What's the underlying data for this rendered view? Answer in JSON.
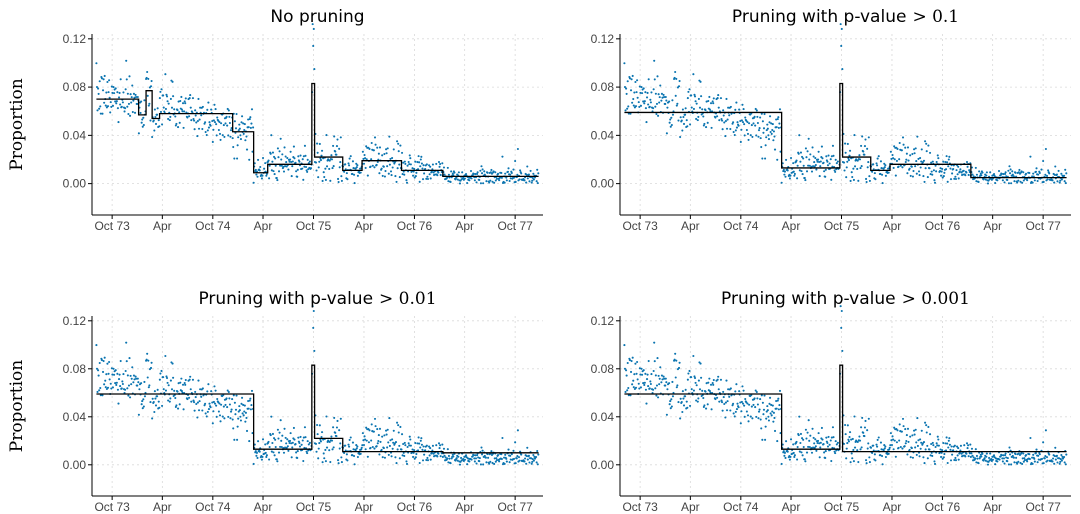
{
  "chart_data": [
    {
      "type": "scatter",
      "title": "No pruning",
      "ylabel": "Proportion",
      "xlabel": "",
      "x_tick_labels": [
        "Oct 73",
        "Apr",
        "Oct 74",
        "Apr",
        "Oct 75",
        "Apr",
        "Oct 76",
        "Apr",
        "Oct 77"
      ],
      "x_tick_dates": [
        "1973-10-01",
        "1974-04-01",
        "1974-10-01",
        "1975-04-01",
        "1975-10-01",
        "1976-04-01",
        "1976-10-01",
        "1977-04-01",
        "1977-10-01"
      ],
      "xlim": [
        "1973-07-20",
        "1978-01-10"
      ],
      "y_ticks": [
        "0.00",
        "0.04",
        "0.08",
        "0.12"
      ],
      "ylim": [
        -0.026,
        0.124
      ],
      "grid": true,
      "point_color": "#0a74b0",
      "fit_color": "#000000",
      "segments": [
        {
          "start": "1973-08-05",
          "end": "1974-01-05",
          "value": 0.07
        },
        {
          "start": "1974-01-05",
          "end": "1974-02-01",
          "value": 0.057
        },
        {
          "start": "1974-02-01",
          "end": "1974-02-23",
          "value": 0.077
        },
        {
          "start": "1974-02-23",
          "end": "1974-03-22",
          "value": 0.054
        },
        {
          "start": "1974-03-22",
          "end": "1974-12-12",
          "value": 0.058
        },
        {
          "start": "1974-12-12",
          "end": "1975-02-26",
          "value": 0.043
        },
        {
          "start": "1975-02-26",
          "end": "1975-04-18",
          "value": 0.009
        },
        {
          "start": "1975-04-18",
          "end": "1975-09-25",
          "value": 0.016
        },
        {
          "start": "1975-09-25",
          "end": "1975-10-05",
          "value": 0.083
        },
        {
          "start": "1975-10-05",
          "end": "1976-01-15",
          "value": 0.022
        },
        {
          "start": "1976-01-15",
          "end": "1976-03-25",
          "value": 0.011
        },
        {
          "start": "1976-03-25",
          "end": "1976-08-15",
          "value": 0.019
        },
        {
          "start": "1976-08-15",
          "end": "1977-01-12",
          "value": 0.011
        },
        {
          "start": "1977-01-12",
          "end": "1977-12-25",
          "value": 0.006
        }
      ]
    },
    {
      "type": "scatter",
      "title": "Pruning with p-value",
      "title_math": "> 0.1",
      "ylabel": "",
      "xlabel": "",
      "x_tick_labels": [
        "Oct 73",
        "Apr",
        "Oct 74",
        "Apr",
        "Oct 75",
        "Apr",
        "Oct 76",
        "Apr",
        "Oct 77"
      ],
      "x_tick_dates": [
        "1973-10-01",
        "1974-04-01",
        "1974-10-01",
        "1975-04-01",
        "1975-10-01",
        "1976-04-01",
        "1976-10-01",
        "1977-04-01",
        "1977-10-01"
      ],
      "xlim": [
        "1973-07-20",
        "1978-01-10"
      ],
      "y_ticks": [
        "0.00",
        "0.04",
        "0.08",
        "0.12"
      ],
      "ylim": [
        -0.026,
        0.124
      ],
      "grid": true,
      "point_color": "#0a74b0",
      "fit_color": "#000000",
      "segments": [
        {
          "start": "1973-08-05",
          "end": "1975-02-26",
          "value": 0.059
        },
        {
          "start": "1975-02-26",
          "end": "1975-09-25",
          "value": 0.013
        },
        {
          "start": "1975-09-25",
          "end": "1975-10-05",
          "value": 0.083
        },
        {
          "start": "1975-10-05",
          "end": "1976-01-15",
          "value": 0.022
        },
        {
          "start": "1976-01-15",
          "end": "1976-03-25",
          "value": 0.011
        },
        {
          "start": "1976-03-25",
          "end": "1977-01-12",
          "value": 0.016
        },
        {
          "start": "1977-01-12",
          "end": "1977-12-25",
          "value": 0.005
        }
      ]
    },
    {
      "type": "scatter",
      "title": "Pruning with p-value",
      "title_math": "> 0.01",
      "ylabel": "Proportion",
      "xlabel": "",
      "x_tick_labels": [
        "Oct 73",
        "Apr",
        "Oct 74",
        "Apr",
        "Oct 75",
        "Apr",
        "Oct 76",
        "Apr",
        "Oct 77"
      ],
      "x_tick_dates": [
        "1973-10-01",
        "1974-04-01",
        "1974-10-01",
        "1975-04-01",
        "1975-10-01",
        "1976-04-01",
        "1976-10-01",
        "1977-04-01",
        "1977-10-01"
      ],
      "xlim": [
        "1973-07-20",
        "1978-01-10"
      ],
      "y_ticks": [
        "0.00",
        "0.04",
        "0.08",
        "0.12"
      ],
      "ylim": [
        -0.026,
        0.124
      ],
      "grid": true,
      "point_color": "#0a74b0",
      "fit_color": "#000000",
      "segments": [
        {
          "start": "1973-08-05",
          "end": "1975-02-26",
          "value": 0.059
        },
        {
          "start": "1975-02-26",
          "end": "1975-09-25",
          "value": 0.013
        },
        {
          "start": "1975-09-25",
          "end": "1975-10-05",
          "value": 0.083
        },
        {
          "start": "1975-10-05",
          "end": "1976-01-15",
          "value": 0.022
        },
        {
          "start": "1976-01-15",
          "end": "1977-01-12",
          "value": 0.011
        },
        {
          "start": "1977-01-12",
          "end": "1977-12-25",
          "value": 0.01
        }
      ]
    },
    {
      "type": "scatter",
      "title": "Pruning with p-value",
      "title_math": "> 0.001",
      "ylabel": "",
      "xlabel": "",
      "x_tick_labels": [
        "Oct 73",
        "Apr",
        "Oct 74",
        "Apr",
        "Oct 75",
        "Apr",
        "Oct 76",
        "Apr",
        "Oct 77"
      ],
      "x_tick_dates": [
        "1973-10-01",
        "1974-04-01",
        "1974-10-01",
        "1975-04-01",
        "1975-10-01",
        "1976-04-01",
        "1976-10-01",
        "1977-04-01",
        "1977-10-01"
      ],
      "xlim": [
        "1973-07-20",
        "1978-01-10"
      ],
      "y_ticks": [
        "0.00",
        "0.04",
        "0.08",
        "0.12"
      ],
      "ylim": [
        -0.026,
        0.124
      ],
      "grid": true,
      "point_color": "#0a74b0",
      "fit_color": "#000000",
      "segments": [
        {
          "start": "1973-08-05",
          "end": "1975-02-26",
          "value": 0.059
        },
        {
          "start": "1975-02-26",
          "end": "1975-09-25",
          "value": 0.013
        },
        {
          "start": "1975-09-25",
          "end": "1975-10-05",
          "value": 0.083
        },
        {
          "start": "1975-10-05",
          "end": "1977-12-25",
          "value": 0.011
        }
      ]
    }
  ],
  "scatter_data": {
    "start_date": "1973-08-05",
    "end_date": "1977-12-25",
    "sample_every_days": 2,
    "levels": [
      {
        "start": "1973-08-05",
        "end": "1974-01-05",
        "mean": 0.072,
        "spread": 0.01
      },
      {
        "start": "1974-01-05",
        "end": "1974-02-01",
        "mean": 0.058,
        "spread": 0.012
      },
      {
        "start": "1974-02-01",
        "end": "1974-02-23",
        "mean": 0.076,
        "spread": 0.013
      },
      {
        "start": "1974-02-23",
        "end": "1974-03-22",
        "mean": 0.056,
        "spread": 0.008
      },
      {
        "start": "1974-03-22",
        "end": "1974-12-12",
        "mean": 0.058,
        "spread": 0.009
      },
      {
        "start": "1974-12-12",
        "end": "1975-02-26",
        "mean": 0.043,
        "spread": 0.009
      },
      {
        "start": "1975-02-26",
        "end": "1975-04-18",
        "mean": 0.01,
        "spread": 0.004
      },
      {
        "start": "1975-04-18",
        "end": "1975-09-25",
        "mean": 0.016,
        "spread": 0.006
      },
      {
        "start": "1975-09-25",
        "end": "1975-10-05",
        "mean": 0.08,
        "spread": 0.02
      },
      {
        "start": "1975-10-05",
        "end": "1976-01-15",
        "mean": 0.021,
        "spread": 0.01
      },
      {
        "start": "1976-01-15",
        "end": "1976-03-25",
        "mean": 0.011,
        "spread": 0.005
      },
      {
        "start": "1976-03-25",
        "end": "1976-08-15",
        "mean": 0.019,
        "spread": 0.009
      },
      {
        "start": "1976-08-15",
        "end": "1977-01-12",
        "mean": 0.012,
        "spread": 0.005
      },
      {
        "start": "1977-01-12",
        "end": "1977-12-25",
        "mean": 0.006,
        "spread": 0.004
      }
    ]
  }
}
